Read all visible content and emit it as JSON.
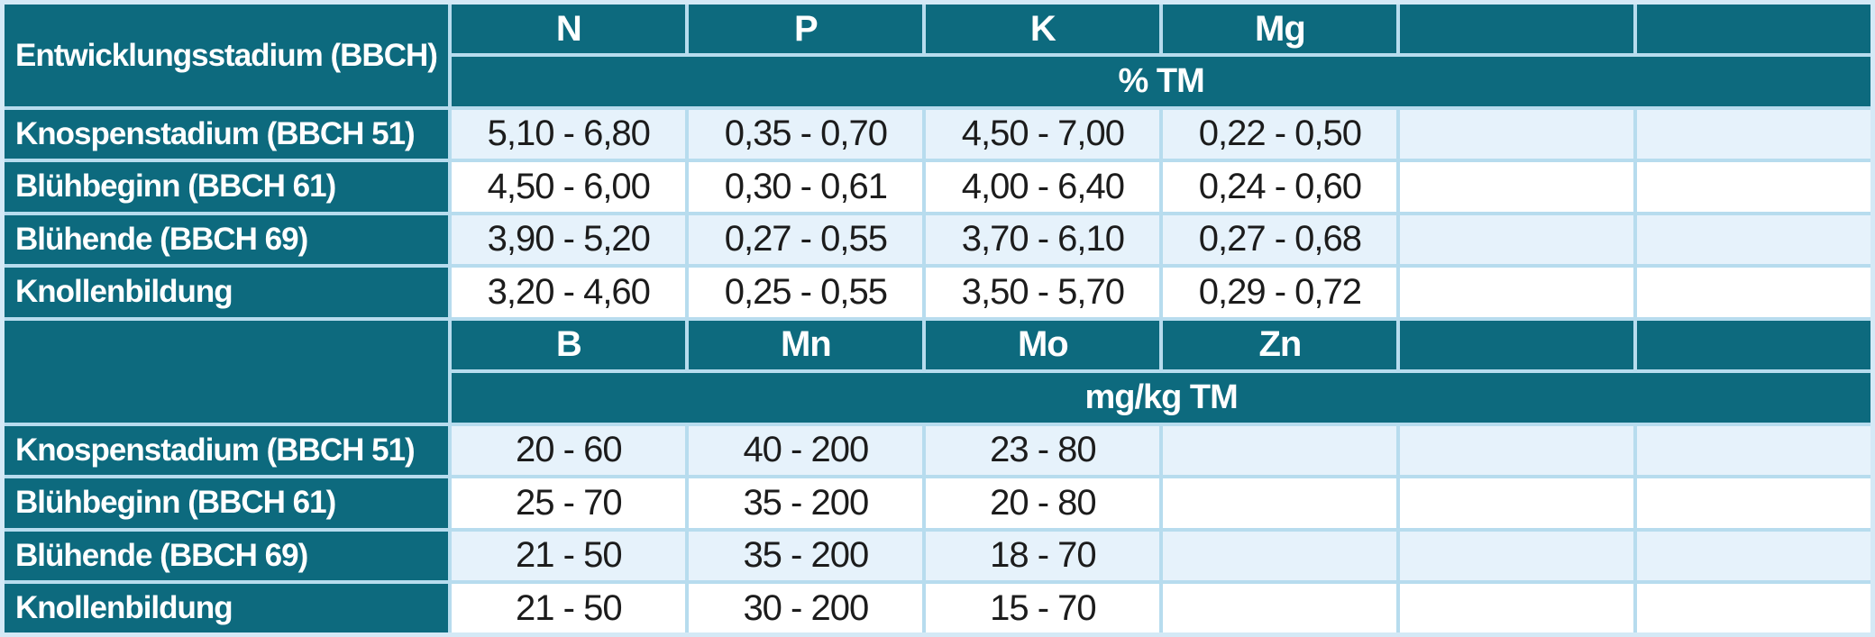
{
  "colors": {
    "header_teal": "#0d6a7e",
    "row_light_blue": "#e6f2fb",
    "row_white": "#ffffff",
    "grid_line": "#b7dcee",
    "outer_border": "#d4e9f6",
    "header_text": "#ffffff",
    "data_text": "#1c1c1c"
  },
  "table": {
    "corner_title": "Entwicklungsstadium (BBCH)",
    "section1": {
      "headers": [
        "N",
        "P",
        "K",
        "Mg",
        "",
        ""
      ],
      "unit": "% TM",
      "rows": [
        {
          "label": "Knospenstadium (BBCH 51)",
          "v": [
            "5,10 - 6,80",
            "0,35 - 0,70",
            "4,50 - 7,00",
            "0,22 - 0,50",
            "",
            ""
          ]
        },
        {
          "label": "Blühbeginn (BBCH 61)",
          "v": [
            "4,50 - 6,00",
            "0,30 - 0,61",
            "4,00 - 6,40",
            "0,24 - 0,60",
            "",
            ""
          ]
        },
        {
          "label": "Blühende (BBCH 69)",
          "v": [
            "3,90 - 5,20",
            "0,27 - 0,55",
            "3,70 - 6,10",
            "0,27 - 0,68",
            "",
            ""
          ]
        },
        {
          "label": "Knollenbildung",
          "v": [
            "3,20 - 4,60",
            "0,25 - 0,55",
            "3,50 - 5,70",
            "0,29 - 0,72",
            "",
            ""
          ]
        }
      ]
    },
    "section2": {
      "headers": [
        "B",
        "Mn",
        "Mo",
        "Zn",
        "",
        ""
      ],
      "unit": "mg/kg TM",
      "rows": [
        {
          "label": "Knospenstadium (BBCH 51)",
          "v": [
            "20 - 60",
            "40 - 200",
            "23 - 80",
            "",
            "",
            ""
          ]
        },
        {
          "label": "Blühbeginn (BBCH 61)",
          "v": [
            "25 - 70",
            "35 - 200",
            "20 - 80",
            "",
            "",
            ""
          ]
        },
        {
          "label": "Blühende (BBCH 69)",
          "v": [
            "21 - 50",
            "35 - 200",
            "18 - 70",
            "",
            "",
            ""
          ]
        },
        {
          "label": "Knollenbildung",
          "v": [
            "21 - 50",
            "30 - 200",
            "15 - 70",
            "",
            "",
            ""
          ]
        }
      ]
    }
  }
}
